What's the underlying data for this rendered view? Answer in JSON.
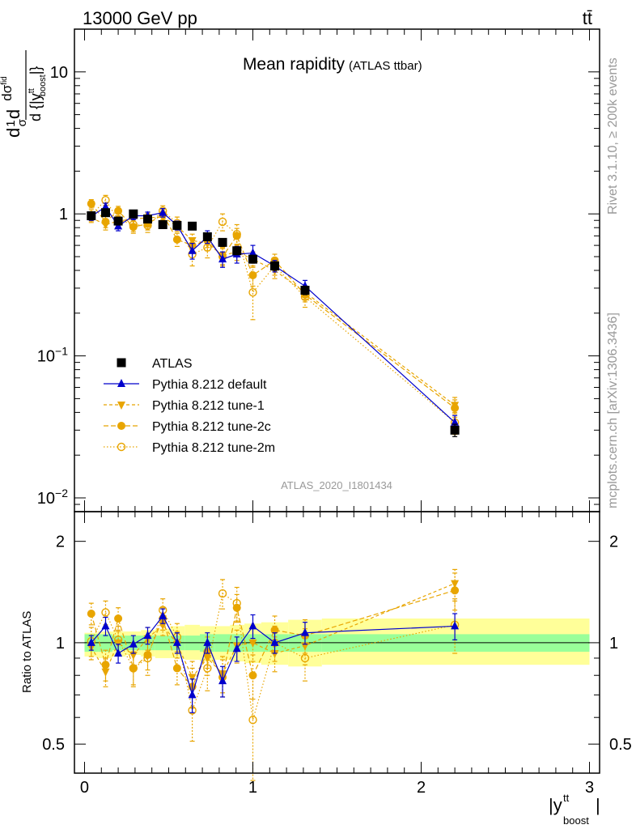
{
  "header": {
    "left": "13000 GeV pp",
    "right": "tt̄"
  },
  "side_labels": {
    "rivet": "Rivet 3.1.10, ≥ 200k events",
    "mcplots": "mcplots.cern.ch [arXiv:1306.3436]"
  },
  "analysis_id": "ATLAS_2020_I1801434",
  "colors": {
    "atlas": "#000000",
    "default": "#0000cc",
    "tune": "#e8a500",
    "band_stat": "#99ff99",
    "band_total": "#ffff99"
  },
  "chart_data": [
    {
      "type": "line",
      "title": "Mean rapidity",
      "subtitle": "(ATLAS ttbar)",
      "ylabel": "dσ/d{|y_boost^tt|} · 1/σ",
      "yscale": "log",
      "ylim": [
        0.008,
        20
      ],
      "xlim": [
        -0.06,
        3.06
      ],
      "yticks": [
        {
          "v": 0.01,
          "base": "10",
          "exp": "−2"
        },
        {
          "v": 0.1,
          "base": "10",
          "exp": "−1"
        },
        {
          "v": 1,
          "base": "1",
          "exp": ""
        },
        {
          "v": 10,
          "base": "10",
          "exp": ""
        }
      ],
      "legend_position": "lower-left",
      "x": [
        0.04,
        0.125,
        0.2,
        0.29,
        0.375,
        0.465,
        0.55,
        0.64,
        0.73,
        0.82,
        0.905,
        1.0,
        1.13,
        1.31,
        2.2
      ],
      "series": [
        {
          "name": "ATLAS",
          "style": "square",
          "values": [
            0.97,
            1.02,
            0.89,
            1.0,
            0.92,
            0.84,
            0.83,
            0.82,
            0.69,
            0.63,
            0.55,
            0.48,
            0.43,
            0.29,
            0.03
          ],
          "err": [
            0.04,
            0.04,
            0.04,
            0.04,
            0.04,
            0.04,
            0.04,
            0.04,
            0.04,
            0.04,
            0.03,
            0.03,
            0.03,
            0.02,
            0.003
          ]
        },
        {
          "name": "Pythia 8.212 default",
          "style": "triangle-up",
          "values": [
            0.96,
            1.12,
            0.82,
            0.97,
            0.97,
            1.02,
            0.83,
            0.55,
            0.69,
            0.48,
            0.52,
            0.53,
            0.43,
            0.31,
            0.034
          ],
          "err": [
            0.06,
            0.07,
            0.06,
            0.06,
            0.06,
            0.07,
            0.06,
            0.07,
            0.07,
            0.06,
            0.07,
            0.07,
            0.04,
            0.03,
            0.004
          ]
        },
        {
          "name": "Pythia 8.212 tune-1",
          "style": "triangle-down",
          "values": [
            0.94,
            0.84,
            0.89,
            0.92,
            0.94,
            0.95,
            0.82,
            0.65,
            0.62,
            0.51,
            0.54,
            0.48,
            0.4,
            0.28,
            0.045
          ],
          "err": [
            0.07,
            0.07,
            0.07,
            0.07,
            0.07,
            0.07,
            0.07,
            0.07,
            0.07,
            0.07,
            0.07,
            0.06,
            0.05,
            0.03,
            0.006
          ]
        },
        {
          "name": "Pythia 8.212 tune-2c",
          "style": "circle",
          "values": [
            1.18,
            0.88,
            1.05,
            0.81,
            0.85,
            0.99,
            0.66,
            0.6,
            0.65,
            0.5,
            0.7,
            0.37,
            0.47,
            0.27,
            0.043
          ],
          "err": [
            0.08,
            0.08,
            0.08,
            0.08,
            0.08,
            0.08,
            0.07,
            0.07,
            0.07,
            0.07,
            0.09,
            0.06,
            0.05,
            0.03,
            0.006
          ]
        },
        {
          "name": "Pythia 8.212 tune-2m",
          "style": "circle-open",
          "values": [
            0.98,
            1.25,
            0.91,
            0.84,
            0.83,
            1.05,
            0.86,
            0.52,
            0.58,
            0.88,
            0.72,
            0.28,
            0.43,
            0.26,
            0.034
          ],
          "err": [
            0.09,
            0.1,
            0.09,
            0.09,
            0.09,
            0.09,
            0.09,
            0.09,
            0.09,
            0.12,
            0.12,
            0.1,
            0.06,
            0.04,
            0.006
          ]
        }
      ]
    },
    {
      "type": "line",
      "ylabel": "Ratio to ATLAS",
      "xlabel": "|y_boost^tt|",
      "yscale": "log",
      "ylim": [
        0.41,
        2.45
      ],
      "xlim": [
        -0.06,
        3.06
      ],
      "yticks": [
        0.5,
        1,
        2
      ],
      "xticks": [
        0,
        1,
        2,
        3
      ],
      "bands": {
        "edges": [
          0.0,
          0.08,
          0.165,
          0.245,
          0.335,
          0.42,
          0.51,
          0.595,
          0.685,
          0.775,
          0.865,
          0.95,
          1.05,
          1.21,
          1.41,
          3.0
        ],
        "stat_lo": [
          0.94,
          0.94,
          0.95,
          0.95,
          0.95,
          0.95,
          0.95,
          0.95,
          0.94,
          0.94,
          0.94,
          0.94,
          0.94,
          0.94,
          0.94
        ],
        "stat_hi": [
          1.06,
          1.06,
          1.05,
          1.05,
          1.05,
          1.05,
          1.05,
          1.05,
          1.06,
          1.06,
          1.06,
          1.06,
          1.06,
          1.06,
          1.06
        ],
        "total_lo": [
          0.91,
          0.9,
          0.91,
          0.92,
          0.91,
          0.9,
          0.9,
          0.89,
          0.88,
          0.89,
          0.88,
          0.87,
          0.86,
          0.85,
          0.86
        ],
        "total_hi": [
          1.07,
          1.08,
          1.08,
          1.08,
          1.09,
          1.1,
          1.12,
          1.13,
          1.12,
          1.12,
          1.13,
          1.14,
          1.15,
          1.17,
          1.18
        ]
      },
      "series": [
        {
          "name": "Pythia 8.212 default",
          "style": "triangle-up",
          "values": [
            1.0,
            1.12,
            0.93,
            0.99,
            1.05,
            1.2,
            1.0,
            0.7,
            1.0,
            0.77,
            0.96,
            1.12,
            1.0,
            1.07,
            1.12
          ],
          "err": [
            0.05,
            0.07,
            0.06,
            0.06,
            0.06,
            0.06,
            0.07,
            0.08,
            0.07,
            0.08,
            0.08,
            0.09,
            0.07,
            0.08,
            0.1
          ]
        },
        {
          "name": "Pythia 8.212 tune-1",
          "style": "triangle-down",
          "values": [
            0.97,
            0.82,
            1.0,
            0.92,
            1.03,
            1.13,
            0.99,
            0.79,
            0.9,
            0.81,
            0.98,
            1.0,
            0.93,
            0.98,
            1.5
          ],
          "err": [
            0.08,
            0.08,
            0.08,
            0.08,
            0.08,
            0.08,
            0.09,
            0.09,
            0.1,
            0.1,
            0.11,
            0.12,
            0.11,
            0.12,
            0.15
          ]
        },
        {
          "name": "Pythia 8.212 tune-2c",
          "style": "circle",
          "values": [
            1.22,
            0.86,
            1.18,
            0.84,
            0.92,
            1.18,
            0.84,
            0.74,
            0.94,
            0.79,
            1.27,
            0.8,
            1.09,
            1.05,
            1.43
          ],
          "err": [
            0.09,
            0.09,
            0.09,
            0.09,
            0.09,
            0.09,
            0.09,
            0.1,
            0.1,
            0.1,
            0.12,
            0.12,
            0.11,
            0.12,
            0.18
          ]
        },
        {
          "name": "Pythia 8.212 tune-2m",
          "style": "circle-open",
          "values": [
            1.01,
            1.23,
            1.02,
            0.84,
            0.9,
            1.25,
            1.04,
            0.63,
            0.84,
            1.4,
            1.31,
            0.59,
            1.0,
            0.9,
            1.13
          ],
          "err": [
            0.1,
            0.1,
            0.1,
            0.1,
            0.1,
            0.1,
            0.1,
            0.12,
            0.12,
            0.14,
            0.15,
            0.2,
            0.12,
            0.13,
            0.2
          ]
        }
      ]
    }
  ]
}
